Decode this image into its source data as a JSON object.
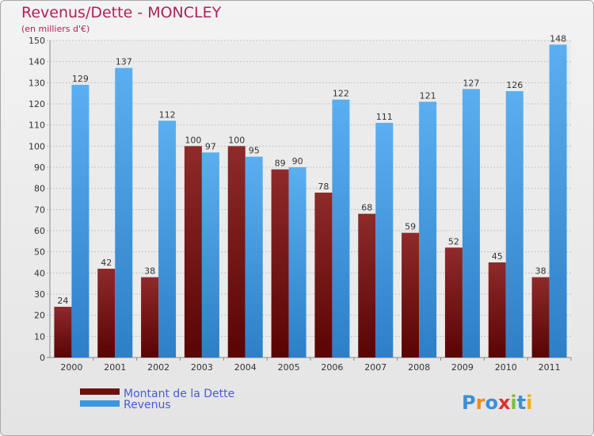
{
  "chart_data": {
    "type": "bar",
    "title": "Revenus/Dette - MONCLEY",
    "subtitle": "(en milliers d'€)",
    "categories": [
      "2000",
      "2001",
      "2002",
      "2003",
      "2004",
      "2005",
      "2006",
      "2007",
      "2008",
      "2009",
      "2010",
      "2011"
    ],
    "series": [
      {
        "name": "Montant de la Dette",
        "color": "#7b1515",
        "values": [
          24,
          42,
          38,
          100,
          100,
          89,
          78,
          68,
          59,
          52,
          45,
          38
        ]
      },
      {
        "name": "Revenus",
        "color": "#3d95de",
        "values": [
          129,
          137,
          112,
          97,
          95,
          90,
          122,
          111,
          121,
          127,
          126,
          148
        ]
      }
    ],
    "ylim": [
      0,
      150
    ],
    "yticks": [
      0,
      10,
      20,
      30,
      40,
      50,
      60,
      70,
      80,
      90,
      100,
      110,
      120,
      130,
      140,
      150
    ],
    "grid": true,
    "legend": "bottom-left"
  },
  "logo": {
    "text": "Proxiti"
  }
}
